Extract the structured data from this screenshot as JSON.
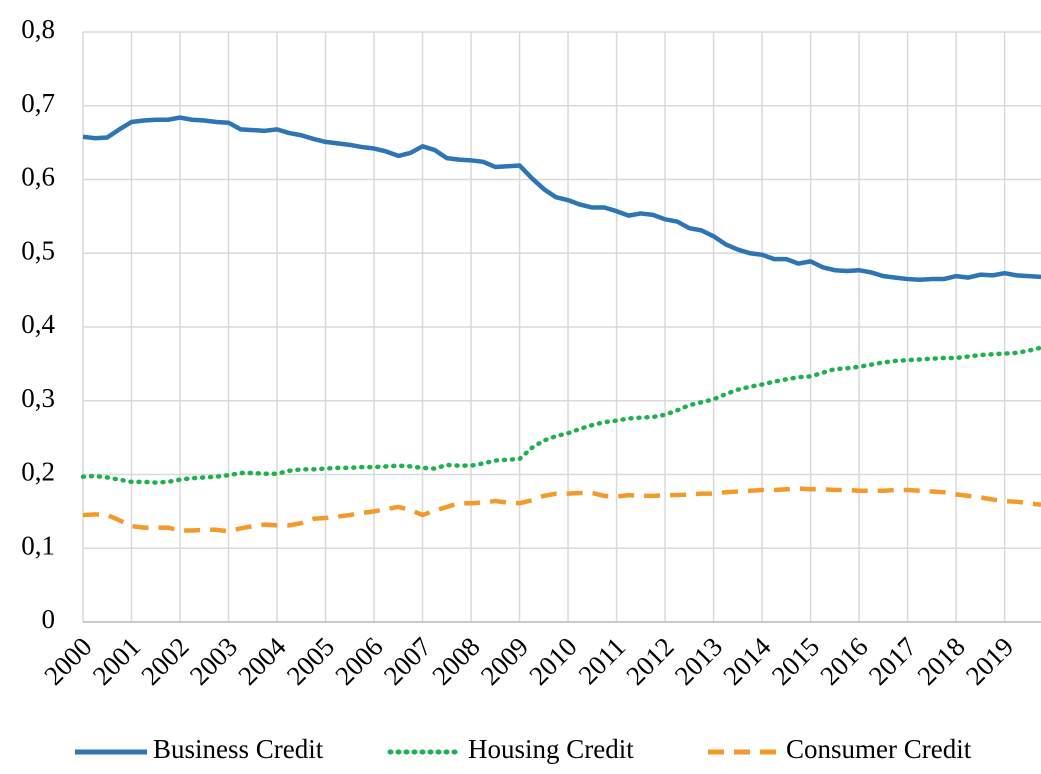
{
  "chart_data": {
    "type": "line",
    "categories": [
      "2000",
      null,
      null,
      null,
      "2001",
      null,
      null,
      null,
      "2002",
      null,
      null,
      null,
      "2003",
      null,
      null,
      null,
      "2004",
      null,
      null,
      null,
      "2005",
      null,
      null,
      null,
      "2006",
      null,
      null,
      null,
      "2007",
      null,
      null,
      null,
      "2008",
      null,
      null,
      null,
      "2009",
      null,
      null,
      null,
      "2010",
      null,
      null,
      null,
      "2011",
      null,
      null,
      null,
      "2012",
      null,
      null,
      null,
      "2013",
      null,
      null,
      null,
      "2014",
      null,
      null,
      null,
      "2015",
      null,
      null,
      null,
      "2016",
      null,
      null,
      null,
      "2017",
      null,
      null,
      null,
      "2018",
      null,
      null,
      null,
      "2019",
      null,
      null,
      null
    ],
    "series": [
      {
        "name": "Business Credit",
        "color": "#2e75b6",
        "style": "solid",
        "values": [
          0.658,
          0.656,
          0.657,
          0.668,
          0.678,
          0.68,
          0.681,
          0.681,
          0.684,
          0.681,
          0.68,
          0.678,
          0.677,
          0.668,
          0.667,
          0.666,
          0.668,
          0.663,
          0.66,
          0.655,
          0.651,
          0.649,
          0.647,
          0.644,
          0.642,
          0.638,
          0.632,
          0.636,
          0.645,
          0.64,
          0.629,
          0.627,
          0.626,
          0.624,
          0.617,
          0.618,
          0.619,
          0.602,
          0.587,
          0.576,
          0.572,
          0.566,
          0.562,
          0.562,
          0.557,
          0.551,
          0.554,
          0.552,
          0.546,
          0.543,
          0.534,
          0.531,
          0.523,
          0.512,
          0.505,
          0.5,
          0.498,
          0.492,
          0.492,
          0.486,
          0.489,
          0.481,
          0.477,
          0.476,
          0.477,
          0.474,
          0.469,
          0.467,
          0.465,
          0.464,
          0.465,
          0.465,
          0.469,
          0.467,
          0.471,
          0.47,
          0.473,
          0.47,
          0.469,
          0.468
        ]
      },
      {
        "name": "Housing Credit",
        "color": "#1fb050",
        "style": "dotted",
        "values": [
          0.197,
          0.198,
          0.196,
          0.193,
          0.19,
          0.19,
          0.189,
          0.19,
          0.193,
          0.195,
          0.196,
          0.197,
          0.199,
          0.202,
          0.202,
          0.201,
          0.201,
          0.205,
          0.207,
          0.207,
          0.208,
          0.209,
          0.209,
          0.21,
          0.21,
          0.211,
          0.212,
          0.211,
          0.209,
          0.208,
          0.213,
          0.212,
          0.212,
          0.215,
          0.219,
          0.22,
          0.221,
          0.236,
          0.246,
          0.252,
          0.256,
          0.262,
          0.267,
          0.271,
          0.273,
          0.276,
          0.277,
          0.278,
          0.281,
          0.287,
          0.294,
          0.298,
          0.302,
          0.309,
          0.315,
          0.319,
          0.322,
          0.326,
          0.329,
          0.332,
          0.333,
          0.338,
          0.343,
          0.344,
          0.346,
          0.349,
          0.352,
          0.354,
          0.355,
          0.356,
          0.357,
          0.358,
          0.358,
          0.36,
          0.362,
          0.363,
          0.364,
          0.365,
          0.368,
          0.372
        ]
      },
      {
        "name": "Consumer Credit",
        "color": "#f39a2a",
        "style": "dashed",
        "values": [
          0.145,
          0.146,
          0.145,
          0.138,
          0.13,
          0.128,
          0.128,
          0.128,
          0.124,
          0.124,
          0.125,
          0.125,
          0.123,
          0.127,
          0.13,
          0.132,
          0.131,
          0.131,
          0.134,
          0.14,
          0.141,
          0.143,
          0.145,
          0.148,
          0.15,
          0.153,
          0.156,
          0.152,
          0.145,
          0.151,
          0.156,
          0.161,
          0.161,
          0.162,
          0.164,
          0.162,
          0.161,
          0.165,
          0.171,
          0.174,
          0.174,
          0.175,
          0.175,
          0.171,
          0.17,
          0.172,
          0.171,
          0.171,
          0.172,
          0.172,
          0.173,
          0.174,
          0.174,
          0.176,
          0.177,
          0.178,
          0.179,
          0.179,
          0.18,
          0.181,
          0.18,
          0.18,
          0.179,
          0.179,
          0.178,
          0.178,
          0.178,
          0.179,
          0.179,
          0.178,
          0.177,
          0.176,
          0.173,
          0.171,
          0.169,
          0.166,
          0.164,
          0.163,
          0.161,
          0.159
        ]
      }
    ],
    "ylim": [
      0,
      0.8
    ],
    "yticks": [
      0,
      {
        "value": 0.1,
        "label": "0,1"
      },
      {
        "value": 0.2,
        "label": "0,2"
      },
      {
        "value": 0.3,
        "label": "0,3"
      },
      {
        "value": 0.4,
        "label": "0,4"
      },
      {
        "value": 0.5,
        "label": "0,5"
      },
      {
        "value": 0.6,
        "label": "0,6"
      },
      {
        "value": 0.7,
        "label": "0,7"
      },
      {
        "value": 0.8,
        "label": "0,8"
      }
    ],
    "grid": true,
    "legend": "bottom"
  }
}
